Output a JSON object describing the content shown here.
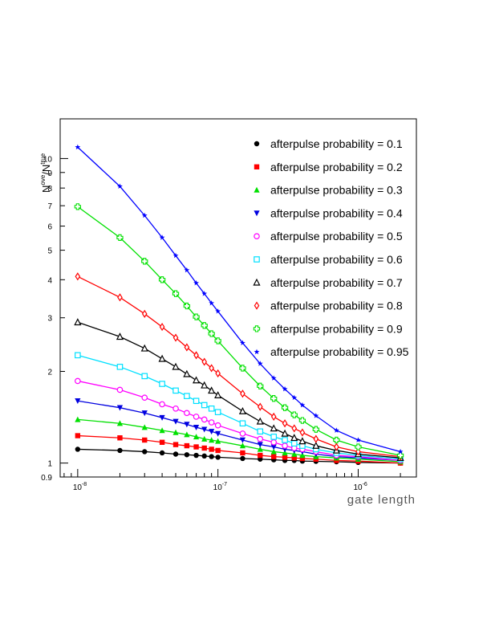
{
  "chart_data": {
    "type": "line",
    "title": "",
    "xlabel": "gate length",
    "ylabel": "N^ove/N^true",
    "ylabel_main1": "N",
    "ylabel_sup1": "ove",
    "ylabel_main2": "/N",
    "ylabel_sup2": "true",
    "x_scale": "log",
    "y_scale": "log",
    "xlim": [
      7.5e-09,
      2.6e-06
    ],
    "ylim": [
      0.9,
      13.5
    ],
    "x_ticks": [
      {
        "value": 1e-08,
        "base": "10",
        "exp": "-8"
      },
      {
        "value": 1e-07,
        "base": "10",
        "exp": "-7"
      },
      {
        "value": 1e-06,
        "base": "10",
        "exp": "-6"
      }
    ],
    "y_ticks": [
      {
        "value": 0.9,
        "label": "0.9"
      },
      {
        "value": 1,
        "label": "1"
      },
      {
        "value": 2,
        "label": "2"
      },
      {
        "value": 3,
        "label": "3"
      },
      {
        "value": 4,
        "label": "4"
      },
      {
        "value": 5,
        "label": "5"
      },
      {
        "value": 6,
        "label": "6"
      },
      {
        "value": 7,
        "label": "7"
      },
      {
        "value": 8,
        "label": "8"
      },
      {
        "value": 9,
        "label": "9"
      },
      {
        "value": 10,
        "label": "10"
      }
    ],
    "legend_position": "top-right",
    "grid": false,
    "x": [
      1e-08,
      2e-08,
      3e-08,
      4e-08,
      5e-08,
      6e-08,
      7e-08,
      8e-08,
      9e-08,
      1e-07,
      1.5e-07,
      2e-07,
      2.5e-07,
      3e-07,
      3.5e-07,
      4e-07,
      5e-07,
      7e-07,
      1e-06,
      2e-06
    ],
    "series": [
      {
        "name": "afterpulse probability = 0.1",
        "marker": "circle-filled",
        "color": "#000000",
        "values": [
          1.11,
          1.1,
          1.09,
          1.08,
          1.07,
          1.065,
          1.06,
          1.055,
          1.05,
          1.045,
          1.035,
          1.03,
          1.025,
          1.02,
          1.02,
          1.015,
          1.013,
          1.01,
          1.005,
          1.0
        ]
      },
      {
        "name": "afterpulse probability = 0.2",
        "marker": "square-filled",
        "color": "#ff0000",
        "values": [
          1.23,
          1.21,
          1.19,
          1.17,
          1.15,
          1.14,
          1.13,
          1.12,
          1.11,
          1.1,
          1.08,
          1.06,
          1.05,
          1.045,
          1.04,
          1.035,
          1.03,
          1.02,
          1.015,
          1.0
        ]
      },
      {
        "name": "afterpulse probability = 0.3",
        "marker": "triangle-up-filled",
        "color": "#00e000",
        "values": [
          1.39,
          1.35,
          1.31,
          1.28,
          1.26,
          1.24,
          1.22,
          1.2,
          1.19,
          1.18,
          1.14,
          1.11,
          1.09,
          1.08,
          1.07,
          1.06,
          1.05,
          1.04,
          1.03,
          1.01
        ]
      },
      {
        "name": "afterpulse probability = 0.4",
        "marker": "triangle-down-filled",
        "color": "#0000e0",
        "values": [
          1.6,
          1.52,
          1.46,
          1.41,
          1.37,
          1.34,
          1.31,
          1.29,
          1.27,
          1.25,
          1.19,
          1.15,
          1.13,
          1.11,
          1.1,
          1.09,
          1.07,
          1.05,
          1.04,
          1.02
        ]
      },
      {
        "name": "afterpulse probability = 0.5",
        "marker": "circle-open",
        "color": "#ff00ff",
        "values": [
          1.86,
          1.74,
          1.64,
          1.56,
          1.51,
          1.46,
          1.42,
          1.39,
          1.36,
          1.33,
          1.25,
          1.2,
          1.17,
          1.14,
          1.12,
          1.11,
          1.09,
          1.06,
          1.05,
          1.02
        ]
      },
      {
        "name": "afterpulse probability = 0.6",
        "marker": "square-open",
        "color": "#00e0ff",
        "values": [
          2.26,
          2.07,
          1.93,
          1.82,
          1.73,
          1.66,
          1.6,
          1.55,
          1.51,
          1.47,
          1.35,
          1.27,
          1.22,
          1.19,
          1.16,
          1.14,
          1.11,
          1.08,
          1.06,
          1.03
        ]
      },
      {
        "name": "afterpulse probability = 0.7",
        "marker": "triangle-up-open",
        "color": "#000000",
        "values": [
          2.9,
          2.6,
          2.38,
          2.2,
          2.07,
          1.96,
          1.87,
          1.8,
          1.73,
          1.67,
          1.48,
          1.37,
          1.3,
          1.25,
          1.21,
          1.18,
          1.14,
          1.1,
          1.07,
          1.04
        ]
      },
      {
        "name": "afterpulse probability = 0.8",
        "marker": "diamond-open",
        "color": "#ff0000",
        "values": [
          4.1,
          3.5,
          3.09,
          2.8,
          2.58,
          2.4,
          2.26,
          2.15,
          2.05,
          1.97,
          1.69,
          1.53,
          1.42,
          1.35,
          1.3,
          1.26,
          1.2,
          1.13,
          1.09,
          1.05
        ]
      },
      {
        "name": "afterpulse probability = 0.9",
        "marker": "cross-open",
        "color": "#00e000",
        "values": [
          6.95,
          5.5,
          4.6,
          4.0,
          3.6,
          3.28,
          3.02,
          2.83,
          2.66,
          2.52,
          2.05,
          1.79,
          1.63,
          1.52,
          1.44,
          1.38,
          1.29,
          1.19,
          1.13,
          1.06
        ]
      },
      {
        "name": "afterpulse probability = 0.95",
        "marker": "star",
        "color": "#0000ff",
        "values": [
          10.9,
          8.1,
          6.5,
          5.5,
          4.8,
          4.3,
          3.9,
          3.6,
          3.35,
          3.15,
          2.48,
          2.12,
          1.9,
          1.75,
          1.64,
          1.55,
          1.43,
          1.28,
          1.19,
          1.09
        ]
      }
    ]
  }
}
